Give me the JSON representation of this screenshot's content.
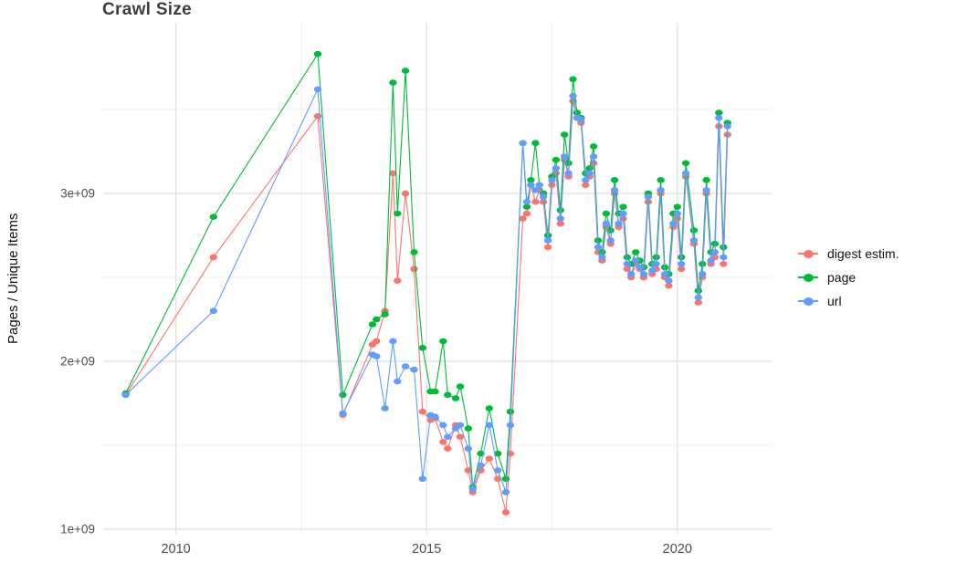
{
  "chart_data": {
    "type": "line",
    "title": "Crawl Size",
    "xlabel": "",
    "ylabel": "Pages / Unique Items",
    "legend_position": "right",
    "grid": true,
    "grid_major_color": "#e3e3e3",
    "grid_minor_color": "#f0f0f0",
    "panel_background": "#ffffff",
    "xlim": [
      2008.55,
      2021.88
    ],
    "ylim": [
      973000000.0,
      4016000000.0
    ],
    "x_ticks": [
      2010,
      2015,
      2020
    ],
    "x_tick_labels": [
      "2010",
      "2015",
      "2020"
    ],
    "x_minor_ticks": [
      2012.5,
      2017.5
    ],
    "y_ticks": [
      1000000000.0,
      2000000000.0,
      3000000000.0
    ],
    "y_tick_labels": [
      "1e+09",
      "2e+09",
      "3e+09"
    ],
    "y_minor_ticks": [
      1500000000.0,
      2500000000.0,
      3500000000.0
    ],
    "series": [
      {
        "name": "digest estim.",
        "color": "#F8766D",
        "x": [
          2009.0,
          2010.75,
          2012.83,
          2013.33,
          2013.92,
          2014.0,
          2014.17,
          2014.33,
          2014.42,
          2014.58,
          2014.75,
          2014.92,
          2015.08,
          2015.17,
          2015.33,
          2015.42,
          2015.58,
          2015.67,
          2015.83,
          2015.92,
          2016.08,
          2016.25,
          2016.42,
          2016.58,
          2016.67,
          2016.92,
          2017.0,
          2017.08,
          2017.17,
          2017.25,
          2017.33,
          2017.42,
          2017.5,
          2017.58,
          2017.67,
          2017.75,
          2017.83,
          2017.92,
          2018.0,
          2018.08,
          2018.17,
          2018.25,
          2018.33,
          2018.42,
          2018.5,
          2018.58,
          2018.67,
          2018.75,
          2018.83,
          2018.92,
          2019.0,
          2019.08,
          2019.17,
          2019.25,
          2019.33,
          2019.42,
          2019.5,
          2019.58,
          2019.67,
          2019.75,
          2019.83,
          2019.92,
          2020.0,
          2020.08,
          2020.17,
          2020.33,
          2020.42,
          2020.5,
          2020.58,
          2020.67,
          2020.75,
          2020.83,
          2020.92,
          2021.0
        ],
        "y": [
          1800000000.0,
          2620000000.0,
          3460000000.0,
          1680000000.0,
          2100000000.0,
          2120000000.0,
          2300000000.0,
          3120000000.0,
          2480000000.0,
          3000000000.0,
          2550000000.0,
          1700000000.0,
          1650000000.0,
          1660000000.0,
          1520000000.0,
          1480000000.0,
          1620000000.0,
          1550000000.0,
          1350000000.0,
          1220000000.0,
          1350000000.0,
          1420000000.0,
          1300000000.0,
          1100000000.0,
          1450000000.0,
          2850000000.0,
          2880000000.0,
          3050000000.0,
          2950000000.0,
          3020000000.0,
          2950000000.0,
          2680000000.0,
          3050000000.0,
          3120000000.0,
          2820000000.0,
          3200000000.0,
          3100000000.0,
          3550000000.0,
          3450000000.0,
          3420000000.0,
          3050000000.0,
          3100000000.0,
          3180000000.0,
          2650000000.0,
          2600000000.0,
          2800000000.0,
          2700000000.0,
          3000000000.0,
          2800000000.0,
          2850000000.0,
          2550000000.0,
          2500000000.0,
          2580000000.0,
          2550000000.0,
          2500000000.0,
          2950000000.0,
          2520000000.0,
          2550000000.0,
          3000000000.0,
          2500000000.0,
          2450000000.0,
          2800000000.0,
          2850000000.0,
          2550000000.0,
          3100000000.0,
          2700000000.0,
          2350000000.0,
          2500000000.0,
          3000000000.0,
          2580000000.0,
          2620000000.0,
          3400000000.0,
          2580000000.0,
          3350000000.0
        ]
      },
      {
        "name": "page",
        "color": "#00BA38",
        "x": [
          2009.0,
          2010.75,
          2012.83,
          2013.33,
          2013.92,
          2014.0,
          2014.17,
          2014.33,
          2014.42,
          2014.58,
          2014.75,
          2014.92,
          2015.08,
          2015.17,
          2015.33,
          2015.42,
          2015.58,
          2015.67,
          2015.83,
          2015.92,
          2016.08,
          2016.25,
          2016.42,
          2016.58,
          2016.67,
          2016.92,
          2017.0,
          2017.08,
          2017.17,
          2017.25,
          2017.33,
          2017.42,
          2017.5,
          2017.58,
          2017.67,
          2017.75,
          2017.83,
          2017.92,
          2018.0,
          2018.08,
          2018.17,
          2018.25,
          2018.33,
          2018.42,
          2018.5,
          2018.58,
          2018.67,
          2018.75,
          2018.83,
          2018.92,
          2019.0,
          2019.08,
          2019.17,
          2019.25,
          2019.33,
          2019.42,
          2019.5,
          2019.58,
          2019.67,
          2019.75,
          2019.83,
          2019.92,
          2020.0,
          2020.08,
          2020.17,
          2020.33,
          2020.42,
          2020.5,
          2020.58,
          2020.67,
          2020.75,
          2020.83,
          2020.92,
          2021.0
        ],
        "y": [
          1810000000.0,
          2860000000.0,
          3830000000.0,
          1800000000.0,
          2220000000.0,
          2250000000.0,
          2280000000.0,
          3660000000.0,
          2880000000.0,
          3730000000.0,
          2650000000.0,
          2080000000.0,
          1820000000.0,
          1820000000.0,
          2120000000.0,
          1800000000.0,
          1780000000.0,
          1850000000.0,
          1600000000.0,
          1250000000.0,
          1450000000.0,
          1720000000.0,
          1450000000.0,
          1300000000.0,
          1700000000.0,
          3300000000.0,
          2920000000.0,
          3080000000.0,
          3300000000.0,
          3050000000.0,
          3000000000.0,
          2750000000.0,
          3100000000.0,
          3200000000.0,
          2900000000.0,
          3350000000.0,
          3180000000.0,
          3680000000.0,
          3480000000.0,
          3450000000.0,
          3120000000.0,
          3150000000.0,
          3280000000.0,
          2720000000.0,
          2650000000.0,
          2880000000.0,
          2780000000.0,
          3080000000.0,
          2880000000.0,
          2920000000.0,
          2620000000.0,
          2580000000.0,
          2650000000.0,
          2600000000.0,
          2560000000.0,
          3000000000.0,
          2580000000.0,
          2620000000.0,
          3080000000.0,
          2560000000.0,
          2520000000.0,
          2880000000.0,
          2920000000.0,
          2620000000.0,
          3180000000.0,
          2780000000.0,
          2420000000.0,
          2580000000.0,
          3080000000.0,
          2650000000.0,
          2700000000.0,
          3480000000.0,
          2680000000.0,
          3420000000.0
        ]
      },
      {
        "name": "url",
        "color": "#619CFF",
        "x": [
          2009.0,
          2010.75,
          2012.83,
          2013.33,
          2013.92,
          2014.0,
          2014.17,
          2014.33,
          2014.42,
          2014.58,
          2014.75,
          2014.92,
          2015.08,
          2015.17,
          2015.33,
          2015.42,
          2015.58,
          2015.67,
          2015.83,
          2015.92,
          2016.08,
          2016.25,
          2016.42,
          2016.58,
          2016.67,
          2016.92,
          2017.0,
          2017.08,
          2017.17,
          2017.25,
          2017.33,
          2017.42,
          2017.5,
          2017.58,
          2017.67,
          2017.75,
          2017.83,
          2017.92,
          2018.0,
          2018.08,
          2018.17,
          2018.25,
          2018.33,
          2018.42,
          2018.5,
          2018.58,
          2018.67,
          2018.75,
          2018.83,
          2018.92,
          2019.0,
          2019.08,
          2019.17,
          2019.25,
          2019.33,
          2019.42,
          2019.5,
          2019.58,
          2019.67,
          2019.75,
          2019.83,
          2019.92,
          2020.0,
          2020.08,
          2020.17,
          2020.33,
          2020.42,
          2020.5,
          2020.58,
          2020.67,
          2020.75,
          2020.83,
          2020.92,
          2021.0
        ],
        "y": [
          1800000000.0,
          2300000000.0,
          3620000000.0,
          1690000000.0,
          2040000000.0,
          2030000000.0,
          1720000000.0,
          2120000000.0,
          1880000000.0,
          1970000000.0,
          1950000000.0,
          1300000000.0,
          1680000000.0,
          1670000000.0,
          1620000000.0,
          1550000000.0,
          1600000000.0,
          1620000000.0,
          1480000000.0,
          1240000000.0,
          1380000000.0,
          1620000000.0,
          1350000000.0,
          1220000000.0,
          1620000000.0,
          3300000000.0,
          2950000000.0,
          3050000000.0,
          3020000000.0,
          3050000000.0,
          2980000000.0,
          2720000000.0,
          3080000000.0,
          3150000000.0,
          2850000000.0,
          3220000000.0,
          3120000000.0,
          3580000000.0,
          3450000000.0,
          3440000000.0,
          3080000000.0,
          3120000000.0,
          3220000000.0,
          2680000000.0,
          2620000000.0,
          2820000000.0,
          2720000000.0,
          3020000000.0,
          2820000000.0,
          2880000000.0,
          2580000000.0,
          2520000000.0,
          2600000000.0,
          2560000000.0,
          2520000000.0,
          2980000000.0,
          2540000000.0,
          2580000000.0,
          3020000000.0,
          2520000000.0,
          2480000000.0,
          2820000000.0,
          2880000000.0,
          2580000000.0,
          3120000000.0,
          2720000000.0,
          2380000000.0,
          2520000000.0,
          3020000000.0,
          2600000000.0,
          2650000000.0,
          3450000000.0,
          2620000000.0,
          3400000000.0
        ]
      }
    ]
  },
  "legend": {
    "items": [
      {
        "label": "digest estim.",
        "color": "#F8766D"
      },
      {
        "label": "page",
        "color": "#00BA38"
      },
      {
        "label": "url",
        "color": "#619CFF"
      }
    ]
  }
}
